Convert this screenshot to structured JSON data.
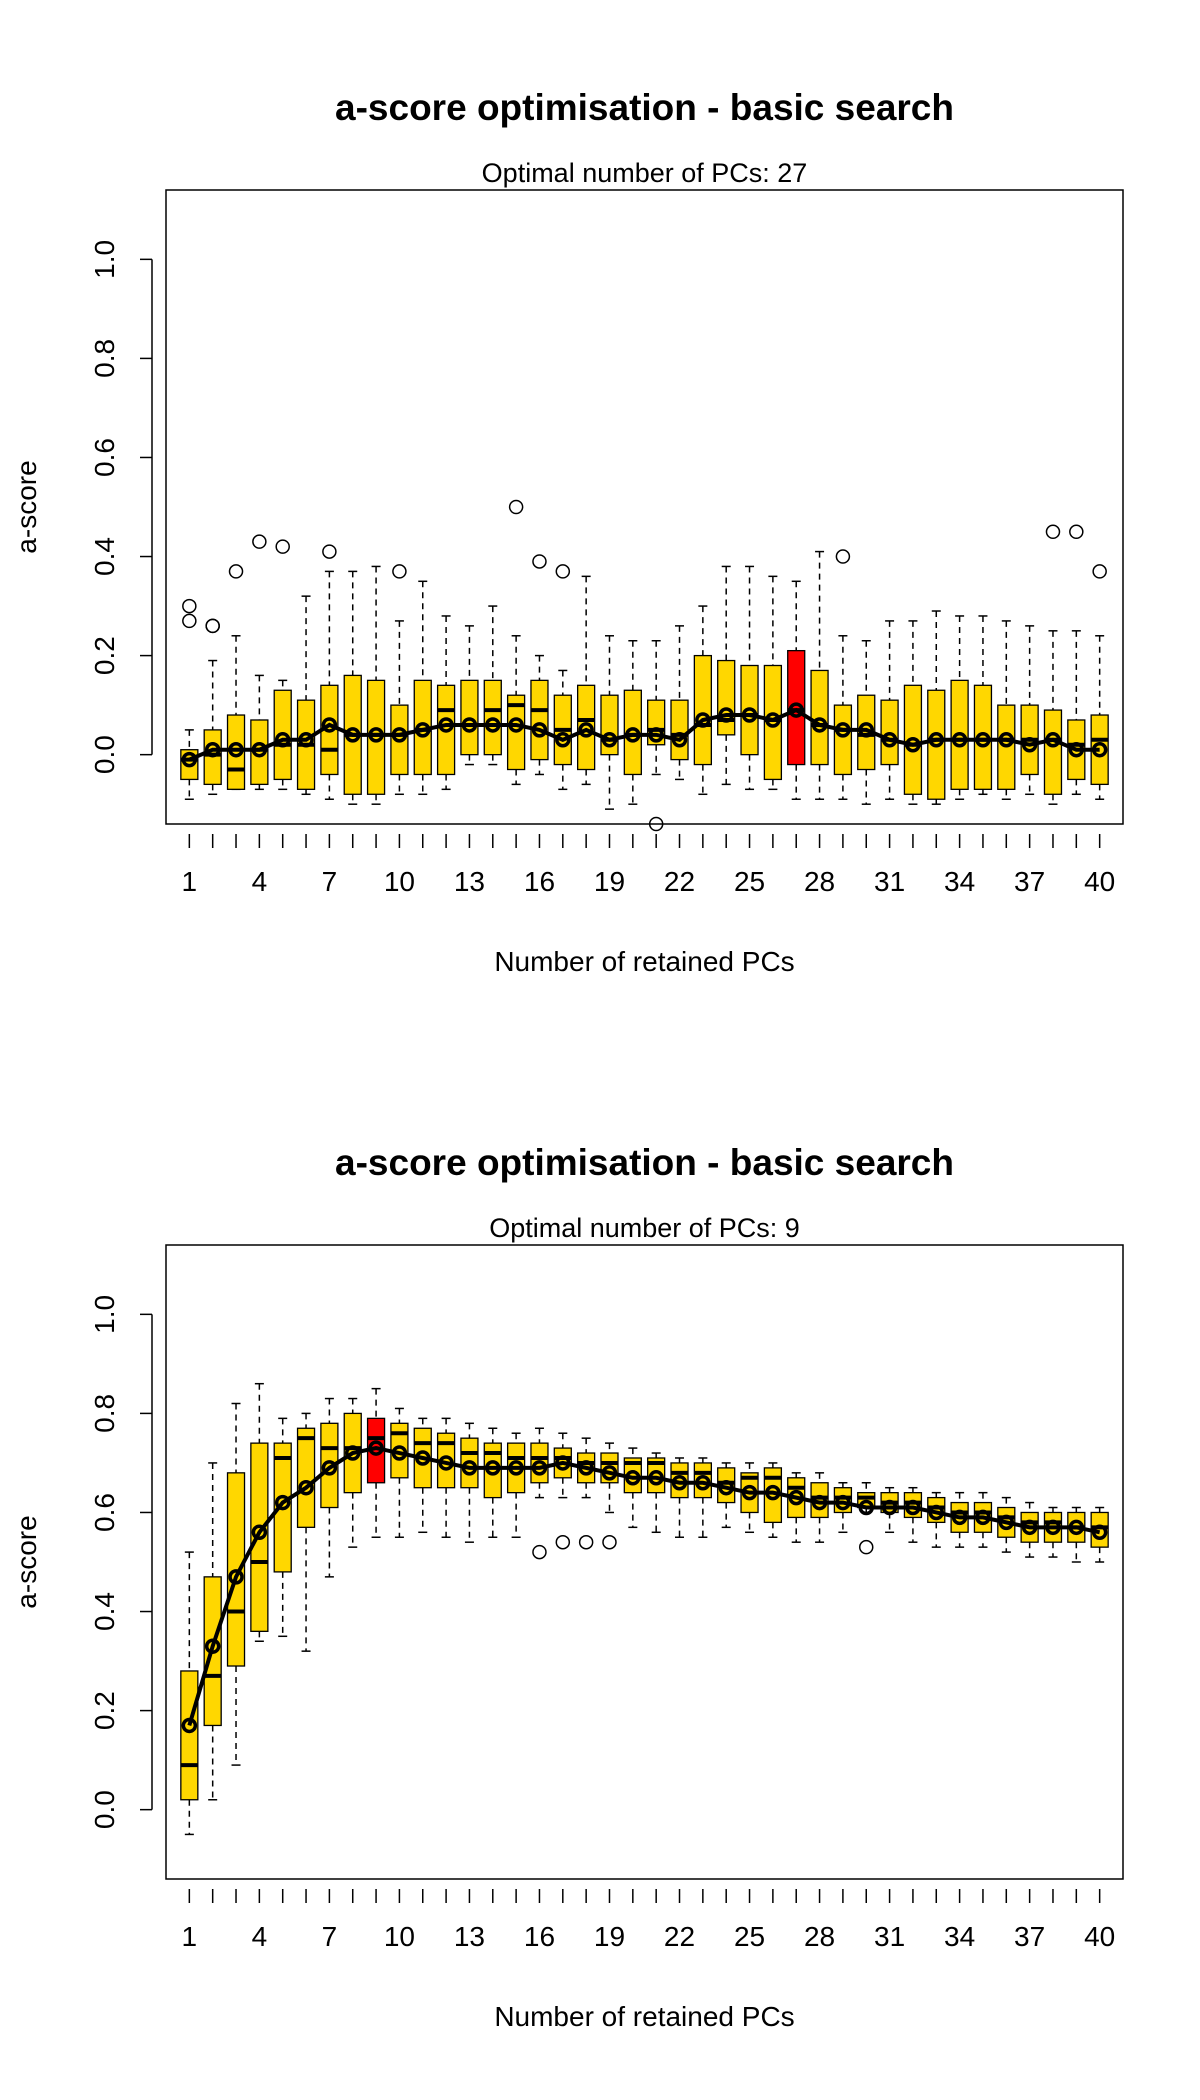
{
  "chart_data": [
    {
      "type": "box",
      "title": "a-score optimisation - basic search",
      "subtitle": "Optimal number of PCs: 27",
      "xlabel": "Number of retained PCs",
      "ylabel": "a-score",
      "xlim": [
        0,
        41
      ],
      "ylim": [
        -0.14,
        1.14
      ],
      "x_ticks": [
        1,
        4,
        7,
        10,
        13,
        16,
        19,
        22,
        25,
        28,
        31,
        34,
        37,
        40
      ],
      "y_ticks": [
        0.0,
        0.2,
        0.4,
        0.6,
        0.8,
        1.0
      ],
      "y_tick_labels": [
        "0.0",
        "0.2",
        "0.4",
        "0.6",
        "0.8",
        "1.0"
      ],
      "grid": false,
      "legend": "none",
      "optimal_pc": 27,
      "box_color": "#ffd700",
      "highlight_color": "#ff0000",
      "boxes": [
        {
          "pc": 1,
          "low": -0.09,
          "q1": -0.05,
          "median": -0.01,
          "q3": 0.01,
          "high": 0.05,
          "mean": -0.01,
          "outliers": [
            0.27,
            0.3
          ]
        },
        {
          "pc": 2,
          "low": -0.08,
          "q1": -0.06,
          "median": 0.0,
          "q3": 0.05,
          "high": 0.19,
          "mean": 0.01,
          "outliers": [
            0.26,
            0.26
          ]
        },
        {
          "pc": 3,
          "low": -0.07,
          "q1": -0.07,
          "median": -0.03,
          "q3": 0.08,
          "high": 0.24,
          "mean": 0.01,
          "outliers": [
            0.37
          ]
        },
        {
          "pc": 4,
          "low": -0.07,
          "q1": -0.06,
          "median": 0.01,
          "q3": 0.07,
          "high": 0.16,
          "mean": 0.01,
          "outliers": [
            0.43
          ]
        },
        {
          "pc": 5,
          "low": -0.07,
          "q1": -0.05,
          "median": 0.02,
          "q3": 0.13,
          "high": 0.15,
          "mean": 0.03,
          "outliers": [
            0.42
          ]
        },
        {
          "pc": 6,
          "low": -0.08,
          "q1": -0.07,
          "median": 0.02,
          "q3": 0.11,
          "high": 0.32,
          "mean": 0.03,
          "outliers": []
        },
        {
          "pc": 7,
          "low": -0.09,
          "q1": -0.04,
          "median": 0.01,
          "q3": 0.14,
          "high": 0.37,
          "mean": 0.06,
          "outliers": [
            0.41
          ]
        },
        {
          "pc": 8,
          "low": -0.1,
          "q1": -0.08,
          "median": 0.04,
          "q3": 0.16,
          "high": 0.37,
          "mean": 0.04,
          "outliers": []
        },
        {
          "pc": 9,
          "low": -0.1,
          "q1": -0.08,
          "median": 0.04,
          "q3": 0.15,
          "high": 0.38,
          "mean": 0.04,
          "outliers": []
        },
        {
          "pc": 10,
          "low": -0.08,
          "q1": -0.04,
          "median": 0.04,
          "q3": 0.1,
          "high": 0.27,
          "mean": 0.04,
          "outliers": [
            0.37
          ]
        },
        {
          "pc": 11,
          "low": -0.08,
          "q1": -0.04,
          "median": 0.05,
          "q3": 0.15,
          "high": 0.35,
          "mean": 0.05,
          "outliers": []
        },
        {
          "pc": 12,
          "low": -0.07,
          "q1": -0.04,
          "median": 0.09,
          "q3": 0.14,
          "high": 0.28,
          "mean": 0.06,
          "outliers": []
        },
        {
          "pc": 13,
          "low": -0.02,
          "q1": 0.0,
          "median": 0.06,
          "q3": 0.15,
          "high": 0.26,
          "mean": 0.06,
          "outliers": []
        },
        {
          "pc": 14,
          "low": -0.02,
          "q1": 0.0,
          "median": 0.09,
          "q3": 0.15,
          "high": 0.3,
          "mean": 0.06,
          "outliers": []
        },
        {
          "pc": 15,
          "low": -0.06,
          "q1": -0.03,
          "median": 0.1,
          "q3": 0.12,
          "high": 0.24,
          "mean": 0.06,
          "outliers": [
            0.5
          ]
        },
        {
          "pc": 16,
          "low": -0.04,
          "q1": -0.01,
          "median": 0.09,
          "q3": 0.15,
          "high": 0.2,
          "mean": 0.05,
          "outliers": [
            0.39
          ]
        },
        {
          "pc": 17,
          "low": -0.07,
          "q1": -0.02,
          "median": 0.05,
          "q3": 0.12,
          "high": 0.17,
          "mean": 0.03,
          "outliers": [
            0.37
          ]
        },
        {
          "pc": 18,
          "low": -0.06,
          "q1": -0.03,
          "median": 0.07,
          "q3": 0.14,
          "high": 0.36,
          "mean": 0.05,
          "outliers": []
        },
        {
          "pc": 19,
          "low": -0.11,
          "q1": 0.0,
          "median": 0.03,
          "q3": 0.12,
          "high": 0.24,
          "mean": 0.03,
          "outliers": []
        },
        {
          "pc": 20,
          "low": -0.1,
          "q1": -0.04,
          "median": 0.04,
          "q3": 0.13,
          "high": 0.23,
          "mean": 0.04,
          "outliers": []
        },
        {
          "pc": 21,
          "low": -0.04,
          "q1": 0.02,
          "median": 0.05,
          "q3": 0.11,
          "high": 0.23,
          "mean": 0.04,
          "outliers": [
            -0.14
          ]
        },
        {
          "pc": 22,
          "low": -0.05,
          "q1": -0.01,
          "median": 0.04,
          "q3": 0.11,
          "high": 0.26,
          "mean": 0.03,
          "outliers": []
        },
        {
          "pc": 23,
          "low": -0.08,
          "q1": -0.02,
          "median": 0.06,
          "q3": 0.2,
          "high": 0.3,
          "mean": 0.07,
          "outliers": []
        },
        {
          "pc": 24,
          "low": -0.06,
          "q1": 0.04,
          "median": 0.07,
          "q3": 0.19,
          "high": 0.38,
          "mean": 0.08,
          "outliers": []
        },
        {
          "pc": 25,
          "low": -0.07,
          "q1": 0.0,
          "median": 0.08,
          "q3": 0.18,
          "high": 0.38,
          "mean": 0.08,
          "outliers": []
        },
        {
          "pc": 26,
          "low": -0.07,
          "q1": -0.05,
          "median": 0.07,
          "q3": 0.18,
          "high": 0.36,
          "mean": 0.07,
          "outliers": []
        },
        {
          "pc": 27,
          "low": -0.09,
          "q1": -0.02,
          "median": 0.09,
          "q3": 0.21,
          "high": 0.35,
          "mean": 0.09,
          "outliers": [],
          "highlight": true
        },
        {
          "pc": 28,
          "low": -0.09,
          "q1": -0.02,
          "median": 0.06,
          "q3": 0.17,
          "high": 0.41,
          "mean": 0.06,
          "outliers": []
        },
        {
          "pc": 29,
          "low": -0.09,
          "q1": -0.04,
          "median": 0.05,
          "q3": 0.1,
          "high": 0.24,
          "mean": 0.05,
          "outliers": [
            0.4
          ]
        },
        {
          "pc": 30,
          "low": -0.1,
          "q1": -0.03,
          "median": 0.04,
          "q3": 0.12,
          "high": 0.23,
          "mean": 0.05,
          "outliers": []
        },
        {
          "pc": 31,
          "low": -0.09,
          "q1": -0.02,
          "median": 0.03,
          "q3": 0.11,
          "high": 0.27,
          "mean": 0.03,
          "outliers": []
        },
        {
          "pc": 32,
          "low": -0.1,
          "q1": -0.08,
          "median": 0.02,
          "q3": 0.14,
          "high": 0.27,
          "mean": 0.02,
          "outliers": []
        },
        {
          "pc": 33,
          "low": -0.1,
          "q1": -0.09,
          "median": 0.03,
          "q3": 0.13,
          "high": 0.29,
          "mean": 0.03,
          "outliers": []
        },
        {
          "pc": 34,
          "low": -0.09,
          "q1": -0.07,
          "median": 0.03,
          "q3": 0.15,
          "high": 0.28,
          "mean": 0.03,
          "outliers": []
        },
        {
          "pc": 35,
          "low": -0.08,
          "q1": -0.07,
          "median": 0.03,
          "q3": 0.14,
          "high": 0.28,
          "mean": 0.03,
          "outliers": []
        },
        {
          "pc": 36,
          "low": -0.09,
          "q1": -0.07,
          "median": 0.03,
          "q3": 0.1,
          "high": 0.27,
          "mean": 0.03,
          "outliers": []
        },
        {
          "pc": 37,
          "low": -0.08,
          "q1": -0.04,
          "median": 0.03,
          "q3": 0.1,
          "high": 0.26,
          "mean": 0.02,
          "outliers": []
        },
        {
          "pc": 38,
          "low": -0.1,
          "q1": -0.08,
          "median": 0.03,
          "q3": 0.09,
          "high": 0.25,
          "mean": 0.03,
          "outliers": [
            0.45
          ]
        },
        {
          "pc": 39,
          "low": -0.08,
          "q1": -0.05,
          "median": 0.02,
          "q3": 0.07,
          "high": 0.25,
          "mean": 0.01,
          "outliers": [
            0.45
          ]
        },
        {
          "pc": 40,
          "low": -0.09,
          "q1": -0.06,
          "median": 0.03,
          "q3": 0.08,
          "high": 0.24,
          "mean": 0.01,
          "outliers": [
            0.37
          ]
        }
      ]
    },
    {
      "type": "box",
      "title": "a-score optimisation - basic search",
      "subtitle": "Optimal number of PCs: 9",
      "xlabel": "Number of retained PCs",
      "ylabel": "a-score",
      "xlim": [
        0,
        41
      ],
      "ylim": [
        -0.14,
        1.14
      ],
      "x_ticks": [
        1,
        4,
        7,
        10,
        13,
        16,
        19,
        22,
        25,
        28,
        31,
        34,
        37,
        40
      ],
      "y_ticks": [
        0.0,
        0.2,
        0.4,
        0.6,
        0.8,
        1.0
      ],
      "y_tick_labels": [
        "0.0",
        "0.2",
        "0.4",
        "0.6",
        "0.8",
        "1.0"
      ],
      "grid": false,
      "legend": "none",
      "optimal_pc": 9,
      "box_color": "#ffd700",
      "highlight_color": "#ff0000",
      "boxes": [
        {
          "pc": 1,
          "low": -0.05,
          "q1": 0.02,
          "median": 0.09,
          "q3": 0.28,
          "high": 0.52,
          "mean": 0.17,
          "outliers": []
        },
        {
          "pc": 2,
          "low": 0.02,
          "q1": 0.17,
          "median": 0.27,
          "q3": 0.47,
          "high": 0.7,
          "mean": 0.33,
          "outliers": []
        },
        {
          "pc": 3,
          "low": 0.09,
          "q1": 0.29,
          "median": 0.4,
          "q3": 0.68,
          "high": 0.82,
          "mean": 0.47,
          "outliers": []
        },
        {
          "pc": 4,
          "low": 0.34,
          "q1": 0.36,
          "median": 0.5,
          "q3": 0.74,
          "high": 0.86,
          "mean": 0.56,
          "outliers": []
        },
        {
          "pc": 5,
          "low": 0.35,
          "q1": 0.48,
          "median": 0.71,
          "q3": 0.74,
          "high": 0.79,
          "mean": 0.62,
          "outliers": []
        },
        {
          "pc": 6,
          "low": 0.32,
          "q1": 0.57,
          "median": 0.75,
          "q3": 0.77,
          "high": 0.8,
          "mean": 0.65,
          "outliers": []
        },
        {
          "pc": 7,
          "low": 0.47,
          "q1": 0.61,
          "median": 0.73,
          "q3": 0.78,
          "high": 0.83,
          "mean": 0.69,
          "outliers": []
        },
        {
          "pc": 8,
          "low": 0.53,
          "q1": 0.64,
          "median": 0.73,
          "q3": 0.8,
          "high": 0.83,
          "mean": 0.72,
          "outliers": []
        },
        {
          "pc": 9,
          "low": 0.55,
          "q1": 0.66,
          "median": 0.75,
          "q3": 0.79,
          "high": 0.85,
          "mean": 0.73,
          "outliers": [],
          "highlight": true
        },
        {
          "pc": 10,
          "low": 0.55,
          "q1": 0.67,
          "median": 0.76,
          "q3": 0.78,
          "high": 0.81,
          "mean": 0.72,
          "outliers": []
        },
        {
          "pc": 11,
          "low": 0.56,
          "q1": 0.65,
          "median": 0.74,
          "q3": 0.77,
          "high": 0.79,
          "mean": 0.71,
          "outliers": []
        },
        {
          "pc": 12,
          "low": 0.55,
          "q1": 0.65,
          "median": 0.74,
          "q3": 0.76,
          "high": 0.79,
          "mean": 0.7,
          "outliers": []
        },
        {
          "pc": 13,
          "low": 0.54,
          "q1": 0.65,
          "median": 0.72,
          "q3": 0.75,
          "high": 0.78,
          "mean": 0.69,
          "outliers": []
        },
        {
          "pc": 14,
          "low": 0.55,
          "q1": 0.63,
          "median": 0.72,
          "q3": 0.74,
          "high": 0.77,
          "mean": 0.69,
          "outliers": []
        },
        {
          "pc": 15,
          "low": 0.55,
          "q1": 0.64,
          "median": 0.71,
          "q3": 0.74,
          "high": 0.76,
          "mean": 0.69,
          "outliers": []
        },
        {
          "pc": 16,
          "low": 0.63,
          "q1": 0.66,
          "median": 0.71,
          "q3": 0.74,
          "high": 0.77,
          "mean": 0.69,
          "outliers": [
            0.52
          ]
        },
        {
          "pc": 17,
          "low": 0.63,
          "q1": 0.67,
          "median": 0.71,
          "q3": 0.73,
          "high": 0.76,
          "mean": 0.7,
          "outliers": [
            0.54
          ]
        },
        {
          "pc": 18,
          "low": 0.63,
          "q1": 0.66,
          "median": 0.7,
          "q3": 0.72,
          "high": 0.75,
          "mean": 0.69,
          "outliers": [
            0.54
          ]
        },
        {
          "pc": 19,
          "low": 0.6,
          "q1": 0.66,
          "median": 0.7,
          "q3": 0.72,
          "high": 0.74,
          "mean": 0.68,
          "outliers": [
            0.54
          ]
        },
        {
          "pc": 20,
          "low": 0.57,
          "q1": 0.64,
          "median": 0.7,
          "q3": 0.71,
          "high": 0.73,
          "mean": 0.67,
          "outliers": []
        },
        {
          "pc": 21,
          "low": 0.56,
          "q1": 0.64,
          "median": 0.7,
          "q3": 0.71,
          "high": 0.72,
          "mean": 0.67,
          "outliers": []
        },
        {
          "pc": 22,
          "low": 0.55,
          "q1": 0.63,
          "median": 0.68,
          "q3": 0.7,
          "high": 0.71,
          "mean": 0.66,
          "outliers": []
        },
        {
          "pc": 23,
          "low": 0.55,
          "q1": 0.63,
          "median": 0.68,
          "q3": 0.7,
          "high": 0.71,
          "mean": 0.66,
          "outliers": []
        },
        {
          "pc": 24,
          "low": 0.57,
          "q1": 0.62,
          "median": 0.66,
          "q3": 0.69,
          "high": 0.7,
          "mean": 0.65,
          "outliers": []
        },
        {
          "pc": 25,
          "low": 0.56,
          "q1": 0.6,
          "median": 0.67,
          "q3": 0.68,
          "high": 0.7,
          "mean": 0.64,
          "outliers": []
        },
        {
          "pc": 26,
          "low": 0.55,
          "q1": 0.58,
          "median": 0.67,
          "q3": 0.69,
          "high": 0.7,
          "mean": 0.64,
          "outliers": []
        },
        {
          "pc": 27,
          "low": 0.54,
          "q1": 0.59,
          "median": 0.65,
          "q3": 0.67,
          "high": 0.68,
          "mean": 0.63,
          "outliers": []
        },
        {
          "pc": 28,
          "low": 0.54,
          "q1": 0.59,
          "median": 0.63,
          "q3": 0.66,
          "high": 0.68,
          "mean": 0.62,
          "outliers": []
        },
        {
          "pc": 29,
          "low": 0.56,
          "q1": 0.6,
          "median": 0.63,
          "q3": 0.65,
          "high": 0.66,
          "mean": 0.62,
          "outliers": []
        },
        {
          "pc": 30,
          "low": 0.6,
          "q1": 0.61,
          "median": 0.63,
          "q3": 0.64,
          "high": 0.66,
          "mean": 0.61,
          "outliers": [
            0.53
          ]
        },
        {
          "pc": 31,
          "low": 0.56,
          "q1": 0.6,
          "median": 0.62,
          "q3": 0.64,
          "high": 0.65,
          "mean": 0.61,
          "outliers": []
        },
        {
          "pc": 32,
          "low": 0.54,
          "q1": 0.59,
          "median": 0.62,
          "q3": 0.64,
          "high": 0.65,
          "mean": 0.61,
          "outliers": []
        },
        {
          "pc": 33,
          "low": 0.53,
          "q1": 0.58,
          "median": 0.61,
          "q3": 0.63,
          "high": 0.64,
          "mean": 0.6,
          "outliers": []
        },
        {
          "pc": 34,
          "low": 0.53,
          "q1": 0.56,
          "median": 0.6,
          "q3": 0.62,
          "high": 0.64,
          "mean": 0.59,
          "outliers": []
        },
        {
          "pc": 35,
          "low": 0.53,
          "q1": 0.56,
          "median": 0.6,
          "q3": 0.62,
          "high": 0.64,
          "mean": 0.59,
          "outliers": []
        },
        {
          "pc": 36,
          "low": 0.52,
          "q1": 0.55,
          "median": 0.59,
          "q3": 0.61,
          "high": 0.63,
          "mean": 0.58,
          "outliers": []
        },
        {
          "pc": 37,
          "low": 0.51,
          "q1": 0.54,
          "median": 0.58,
          "q3": 0.6,
          "high": 0.62,
          "mean": 0.57,
          "outliers": []
        },
        {
          "pc": 38,
          "low": 0.51,
          "q1": 0.54,
          "median": 0.58,
          "q3": 0.6,
          "high": 0.61,
          "mean": 0.57,
          "outliers": []
        },
        {
          "pc": 39,
          "low": 0.5,
          "q1": 0.54,
          "median": 0.57,
          "q3": 0.6,
          "high": 0.61,
          "mean": 0.57,
          "outliers": []
        },
        {
          "pc": 40,
          "low": 0.5,
          "q1": 0.53,
          "median": 0.57,
          "q3": 0.6,
          "high": 0.61,
          "mean": 0.56,
          "outliers": []
        }
      ]
    }
  ]
}
